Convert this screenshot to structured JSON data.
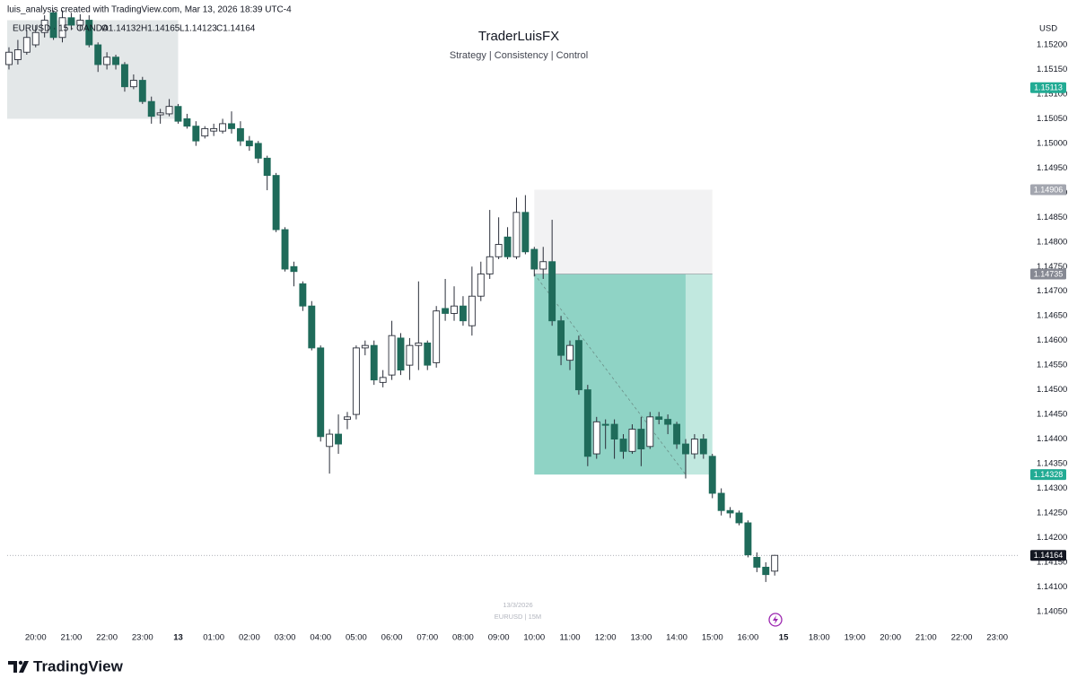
{
  "header": "luis_analysis created with TradingView.com, Mar 13, 2026 18:39 UTC-4",
  "legend": {
    "symbol": "EURUSD · 15 · OANDA",
    "open": "O1.14132",
    "high": "H1.14165",
    "low": "L1.14123",
    "close": "C1.14164"
  },
  "chart_data": {
    "type": "candlestick",
    "title": "TraderLuisFX",
    "subtitle": "Strategy | Consistency | Control",
    "currency": "USD",
    "watermark": [
      "13/3/2026",
      "EURUSD | 15M"
    ],
    "up_color": "#ffffff",
    "down_color": "#1f6b5a",
    "wick_color": "#2a2e39",
    "x": [
      -0.75,
      -0.5,
      -0.25,
      0,
      0.25,
      0.5,
      0.75,
      1,
      1.25,
      1.5,
      1.75,
      2,
      2.25,
      2.5,
      2.75,
      3,
      3.25,
      3.5,
      3.75,
      4,
      4.25,
      4.5,
      4.75,
      5,
      5.25,
      5.5,
      5.75,
      6,
      6.25,
      6.5,
      6.75,
      7,
      7.25,
      7.5,
      7.75,
      8,
      8.25,
      8.5,
      8.75,
      9,
      9.25,
      9.5,
      9.75,
      10,
      10.25,
      10.5,
      10.75,
      11,
      11.25,
      11.5,
      11.75,
      12,
      12.25,
      12.5,
      12.75,
      13,
      13.25,
      13.5,
      13.75,
      14,
      14.25,
      14.5,
      14.75,
      15,
      15.25,
      15.5,
      15.75,
      16,
      16.25,
      16.5,
      16.75,
      17,
      17.25,
      17.5,
      17.75,
      18,
      18.25,
      18.5,
      18.75,
      19,
      19.25,
      19.5,
      19.75,
      20,
      20.25,
      20.5,
      20.75
    ],
    "open": [
      1.1516,
      1.1517,
      1.15185,
      1.152,
      1.15225,
      1.15265,
      1.15215,
      1.15255,
      1.1524,
      1.1525,
      1.152,
      1.1516,
      1.15175,
      1.1516,
      1.15115,
      1.15128,
      1.15085,
      1.15058,
      1.1506,
      1.15075,
      1.1505,
      1.15035,
      1.15015,
      1.15025,
      1.15025,
      1.1504,
      1.1503,
      1.15005,
      1.15,
      1.1497,
      1.14935,
      1.14825,
      1.1475,
      1.14715,
      1.1467,
      1.14585,
      1.14385,
      1.1441,
      1.1444,
      1.1445,
      1.14585,
      1.1459,
      1.14515,
      1.1453,
      1.14605,
      1.1455,
      1.1459,
      1.14595,
      1.14555,
      1.14665,
      1.14655,
      1.1467,
      1.1463,
      1.1469,
      1.14735,
      1.1477,
      1.1481,
      1.1477,
      1.1486,
      1.14785,
      1.14745,
      1.1476,
      1.1464,
      1.1456,
      1.146,
      1.145,
      1.1437,
      1.1443,
      1.1443,
      1.144,
      1.14375,
      1.1442,
      1.14385,
      1.14445,
      1.1444,
      1.1443,
      1.1439,
      1.1437,
      1.144,
      1.14365,
      1.1429,
      1.14255,
      1.1425,
      1.1423,
      1.1416,
      1.1414,
      1.14132
    ],
    "high": [
      1.15195,
      1.1521,
      1.1523,
      1.1524,
      1.1526,
      1.1527,
      1.1527,
      1.15265,
      1.15262,
      1.1526,
      1.15205,
      1.15185,
      1.1518,
      1.15165,
      1.1514,
      1.15135,
      1.15095,
      1.1507,
      1.1509,
      1.1508,
      1.1506,
      1.15045,
      1.15035,
      1.1504,
      1.1505,
      1.15065,
      1.15045,
      1.15015,
      1.15005,
      1.14975,
      1.1494,
      1.1483,
      1.1476,
      1.1472,
      1.1468,
      1.1459,
      1.1442,
      1.1445,
      1.14455,
      1.1459,
      1.146,
      1.146,
      1.1454,
      1.1464,
      1.14615,
      1.14605,
      1.1472,
      1.146,
      1.1467,
      1.14725,
      1.1471,
      1.1469,
      1.1475,
      1.1476,
      1.14865,
      1.1485,
      1.1483,
      1.1489,
      1.14895,
      1.1479,
      1.1479,
      1.14845,
      1.1465,
      1.146,
      1.1461,
      1.1451,
      1.14445,
      1.1444,
      1.1444,
      1.1441,
      1.1443,
      1.14445,
      1.14455,
      1.14455,
      1.1445,
      1.14435,
      1.144,
      1.1441,
      1.1441,
      1.1437,
      1.143,
      1.14262,
      1.14255,
      1.14235,
      1.1417,
      1.1415,
      1.14165
    ],
    "low": [
      1.1515,
      1.1516,
      1.1518,
      1.15195,
      1.15215,
      1.1521,
      1.15205,
      1.1523,
      1.1523,
      1.15195,
      1.15145,
      1.1515,
      1.1515,
      1.15105,
      1.1511,
      1.1508,
      1.1504,
      1.1504,
      1.15055,
      1.1504,
      1.1503,
      1.14995,
      1.1501,
      1.15015,
      1.1502,
      1.1502,
      1.14995,
      1.14985,
      1.1496,
      1.14905,
      1.1482,
      1.1474,
      1.1471,
      1.1466,
      1.1458,
      1.14395,
      1.1433,
      1.1437,
      1.1442,
      1.1444,
      1.1457,
      1.1451,
      1.14505,
      1.1452,
      1.1453,
      1.1452,
      1.1454,
      1.1454,
      1.14545,
      1.1464,
      1.1464,
      1.1463,
      1.1461,
      1.1468,
      1.14725,
      1.14765,
      1.14765,
      1.14765,
      1.14775,
      1.1473,
      1.14725,
      1.1463,
      1.1455,
      1.1454,
      1.1449,
      1.14345,
      1.1436,
      1.1438,
      1.1436,
      1.1436,
      1.1437,
      1.14345,
      1.1438,
      1.1443,
      1.1441,
      1.1438,
      1.1432,
      1.1436,
      1.1436,
      1.1428,
      1.14245,
      1.1424,
      1.14225,
      1.1416,
      1.1413,
      1.1411,
      1.14123
    ],
    "close": [
      1.15185,
      1.1519,
      1.15215,
      1.15225,
      1.1525,
      1.15215,
      1.15255,
      1.1524,
      1.1525,
      1.152,
      1.1516,
      1.15175,
      1.1516,
      1.15115,
      1.15128,
      1.15085,
      1.15055,
      1.15062,
      1.15075,
      1.15045,
      1.15035,
      1.15005,
      1.1503,
      1.1503,
      1.1504,
      1.1503,
      1.15005,
      1.14995,
      1.1497,
      1.14935,
      1.14825,
      1.14745,
      1.1474,
      1.1467,
      1.14585,
      1.14405,
      1.1441,
      1.1439,
      1.14445,
      1.14585,
      1.1459,
      1.1452,
      1.14525,
      1.1461,
      1.1454,
      1.1459,
      1.14595,
      1.1455,
      1.1466,
      1.14655,
      1.1467,
      1.1464,
      1.1469,
      1.14735,
      1.1477,
      1.14795,
      1.1477,
      1.1486,
      1.1478,
      1.14745,
      1.1476,
      1.1464,
      1.1457,
      1.1459,
      1.145,
      1.14365,
      1.14435,
      1.14428,
      1.144,
      1.14375,
      1.1442,
      1.1438,
      1.14445,
      1.1444,
      1.1443,
      1.1439,
      1.1437,
      1.144,
      1.1437,
      1.1429,
      1.14255,
      1.1425,
      1.1423,
      1.14165,
      1.1414,
      1.14125,
      1.14164
    ],
    "xlim": [
      -0.8,
      27.6
    ],
    "xticks": [
      {
        "value": 0,
        "label": "20:00"
      },
      {
        "value": 1,
        "label": "21:00"
      },
      {
        "value": 2,
        "label": "22:00"
      },
      {
        "value": 3,
        "label": "23:00"
      },
      {
        "value": 4,
        "label": "13"
      },
      {
        "value": 5,
        "label": "01:00"
      },
      {
        "value": 6,
        "label": "02:00"
      },
      {
        "value": 7,
        "label": "03:00"
      },
      {
        "value": 8,
        "label": "04:00"
      },
      {
        "value": 9,
        "label": "05:00"
      },
      {
        "value": 10,
        "label": "06:00"
      },
      {
        "value": 11,
        "label": "07:00"
      },
      {
        "value": 12,
        "label": "08:00"
      },
      {
        "value": 13,
        "label": "09:00"
      },
      {
        "value": 14,
        "label": "10:00"
      },
      {
        "value": 15,
        "label": "11:00"
      },
      {
        "value": 16,
        "label": "12:00"
      },
      {
        "value": 17,
        "label": "13:00"
      },
      {
        "value": 18,
        "label": "14:00"
      },
      {
        "value": 19,
        "label": "15:00"
      },
      {
        "value": 20,
        "label": "16:00"
      },
      {
        "value": 21,
        "label": "15"
      },
      {
        "value": 22,
        "label": "18:00"
      },
      {
        "value": 23,
        "label": "19:00"
      },
      {
        "value": 24,
        "label": "20:00"
      },
      {
        "value": 25,
        "label": "21:00"
      },
      {
        "value": 26,
        "label": "22:00"
      },
      {
        "value": 27,
        "label": "23:00"
      }
    ],
    "ylim": [
      1.14017,
      1.15291
    ],
    "yticks": [
      {
        "value": 1.152,
        "label": "1.15200"
      },
      {
        "value": 1.1515,
        "label": "1.15150"
      },
      {
        "value": 1.151,
        "label": "1.15100"
      },
      {
        "value": 1.1505,
        "label": "1.15050"
      },
      {
        "value": 1.15,
        "label": "1.15000"
      },
      {
        "value": 1.1495,
        "label": "1.14950"
      },
      {
        "value": 1.149,
        "label": "1.14900"
      },
      {
        "value": 1.1485,
        "label": "1.14850"
      },
      {
        "value": 1.148,
        "label": "1.14800"
      },
      {
        "value": 1.1475,
        "label": "1.14750"
      },
      {
        "value": 1.147,
        "label": "1.14700"
      },
      {
        "value": 1.1465,
        "label": "1.14650"
      },
      {
        "value": 1.146,
        "label": "1.14600"
      },
      {
        "value": 1.1455,
        "label": "1.14550"
      },
      {
        "value": 1.145,
        "label": "1.14500"
      },
      {
        "value": 1.1445,
        "label": "1.14450"
      },
      {
        "value": 1.144,
        "label": "1.14400"
      },
      {
        "value": 1.1435,
        "label": "1.14350"
      },
      {
        "value": 1.143,
        "label": "1.14300"
      },
      {
        "value": 1.1425,
        "label": "1.14250"
      },
      {
        "value": 1.142,
        "label": "1.14200"
      },
      {
        "value": 1.1415,
        "label": "1.14150"
      },
      {
        "value": 1.141,
        "label": "1.14100"
      },
      {
        "value": 1.1405,
        "label": "1.14050"
      }
    ],
    "price_labels": [
      {
        "value": 1.15113,
        "color": "#22ab94"
      },
      {
        "value": 1.14906,
        "color": "#a3a6af"
      },
      {
        "value": 1.14735,
        "color": "#868993"
      },
      {
        "value": 1.14328,
        "color": "#22ab94"
      },
      {
        "value": 1.14164,
        "color": "#131722"
      }
    ],
    "zones": [
      {
        "x": [
          -0.8,
          4
        ],
        "y": [
          1.1505,
          1.1525
        ],
        "color": "#e3e7e8"
      }
    ],
    "position": {
      "start": 14,
      "fill_end": 18.25,
      "end": 19,
      "entry": 2,
      "stop": 1,
      "target": 3
    }
  }
}
